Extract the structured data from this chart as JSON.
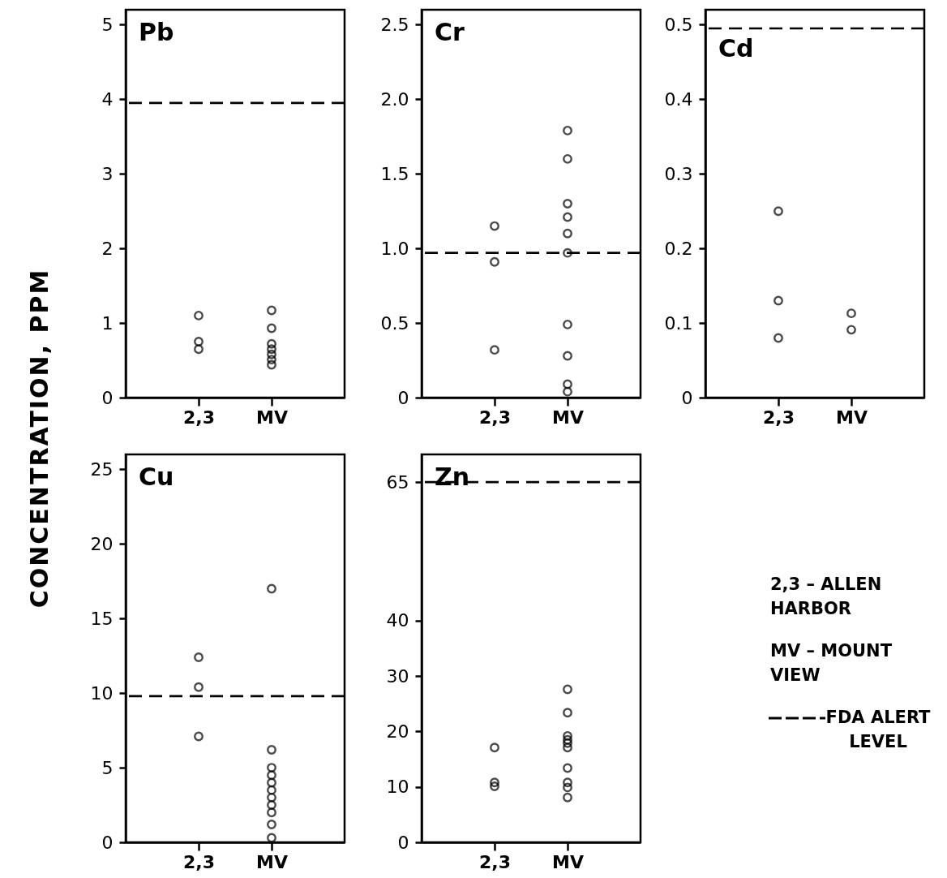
{
  "chart_data": [
    {
      "type": "scatter",
      "title": "Pb",
      "ylabel": "CONCENTRATION, PPM",
      "categories": [
        "2,3",
        "MV"
      ],
      "marker": "circle",
      "series": [
        {
          "color": "#000000",
          "x": [
            "2,3",
            "2,3",
            "2,3",
            "MV",
            "MV",
            "MV",
            "MV",
            "MV",
            "MV",
            "MV"
          ],
          "values": [
            1.1,
            0.75,
            0.65,
            1.17,
            0.93,
            0.72,
            0.65,
            0.58,
            0.51,
            0.44
          ]
        }
      ],
      "ylim": [
        0,
        5.2
      ],
      "yticks": [
        0,
        1,
        2,
        3,
        4,
        5
      ],
      "ref_lines": [
        {
          "axis": "y",
          "value": 3.95,
          "color": "#000000",
          "line_style": "dashed"
        }
      ]
    },
    {
      "type": "scatter",
      "title": "Cr",
      "categories": [
        "2,3",
        "MV"
      ],
      "marker": "circle",
      "series": [
        {
          "color": "#000000",
          "x": [
            "2,3",
            "2,3",
            "2,3",
            "MV",
            "MV",
            "MV",
            "MV",
            "MV",
            "MV",
            "MV",
            "MV",
            "MV",
            "MV"
          ],
          "values": [
            1.15,
            0.91,
            0.32,
            1.79,
            1.6,
            1.3,
            1.21,
            1.1,
            0.97,
            0.49,
            0.28,
            0.09,
            0.04
          ]
        }
      ],
      "ylim": [
        0,
        2.6
      ],
      "yticks": [
        0,
        {
          "value": 0.5,
          "label": "0.5"
        },
        {
          "value": 1,
          "label": "1.0"
        },
        {
          "value": 1.5,
          "label": "1.5"
        },
        {
          "value": 2,
          "label": "2.0"
        },
        {
          "value": 2.5,
          "label": "2.5"
        }
      ],
      "ref_lines": [
        {
          "axis": "y",
          "value": 0.97,
          "color": "#000000",
          "line_style": "dashed"
        }
      ]
    },
    {
      "type": "scatter",
      "title": "Cd",
      "categories": [
        "2,3",
        "MV"
      ],
      "marker": "circle",
      "series": [
        {
          "color": "#000000",
          "x": [
            "2,3",
            "2,3",
            "2,3",
            "MV",
            "MV"
          ],
          "values": [
            0.25,
            0.13,
            0.08,
            0.113,
            0.091
          ]
        }
      ],
      "ylim": [
        0,
        0.52
      ],
      "yticks": [
        0,
        0.1,
        0.2,
        0.3,
        0.4,
        0.5
      ],
      "ref_lines": [
        {
          "axis": "y",
          "value": 0.495,
          "color": "#000000",
          "line_style": "dashed"
        }
      ]
    },
    {
      "type": "scatter",
      "title": "Cu",
      "categories": [
        "2,3",
        "MV"
      ],
      "marker": "circle",
      "series": [
        {
          "color": "#000000",
          "x": [
            "2,3",
            "2,3",
            "2,3",
            "MV",
            "MV",
            "MV",
            "MV",
            "MV",
            "MV",
            "MV",
            "MV",
            "MV",
            "MV",
            "MV"
          ],
          "values": [
            12.4,
            10.4,
            7.1,
            17.0,
            6.2,
            5.0,
            4.5,
            4.0,
            3.5,
            3.0,
            2.5,
            2.0,
            1.2,
            0.3
          ]
        }
      ],
      "ylim": [
        0,
        26
      ],
      "yticks": [
        0,
        5,
        10,
        15,
        20,
        25
      ],
      "ref_lines": [
        {
          "axis": "y",
          "value": 9.8,
          "color": "#000000",
          "line_style": "dashed"
        }
      ]
    },
    {
      "type": "scatter",
      "title": "Zn",
      "categories": [
        "2,3",
        "MV"
      ],
      "marker": "circle",
      "series": [
        {
          "color": "#000000",
          "x": [
            "2,3",
            "2,3",
            "2,3",
            "MV",
            "MV",
            "MV",
            "MV",
            "MV",
            "MV",
            "MV",
            "MV",
            "MV",
            "MV"
          ],
          "values": [
            17.1,
            10.8,
            10.1,
            27.6,
            23.4,
            19.2,
            18.5,
            17.9,
            17.1,
            13.4,
            10.8,
            9.9,
            8.1
          ]
        }
      ],
      "ylim": [
        0,
        70
      ],
      "yticks": [
        0,
        10,
        20,
        30,
        40,
        65
      ],
      "ref_lines": [
        {
          "axis": "y",
          "value": 65,
          "color": "#000000",
          "line_style": "dashed"
        }
      ]
    },
    {
      "type": "other",
      "annotations": [
        "2,3 – ALLEN HARBOR",
        "MV – MOUNT VIEW",
        "FDA ALERT LEVEL"
      ]
    }
  ]
}
